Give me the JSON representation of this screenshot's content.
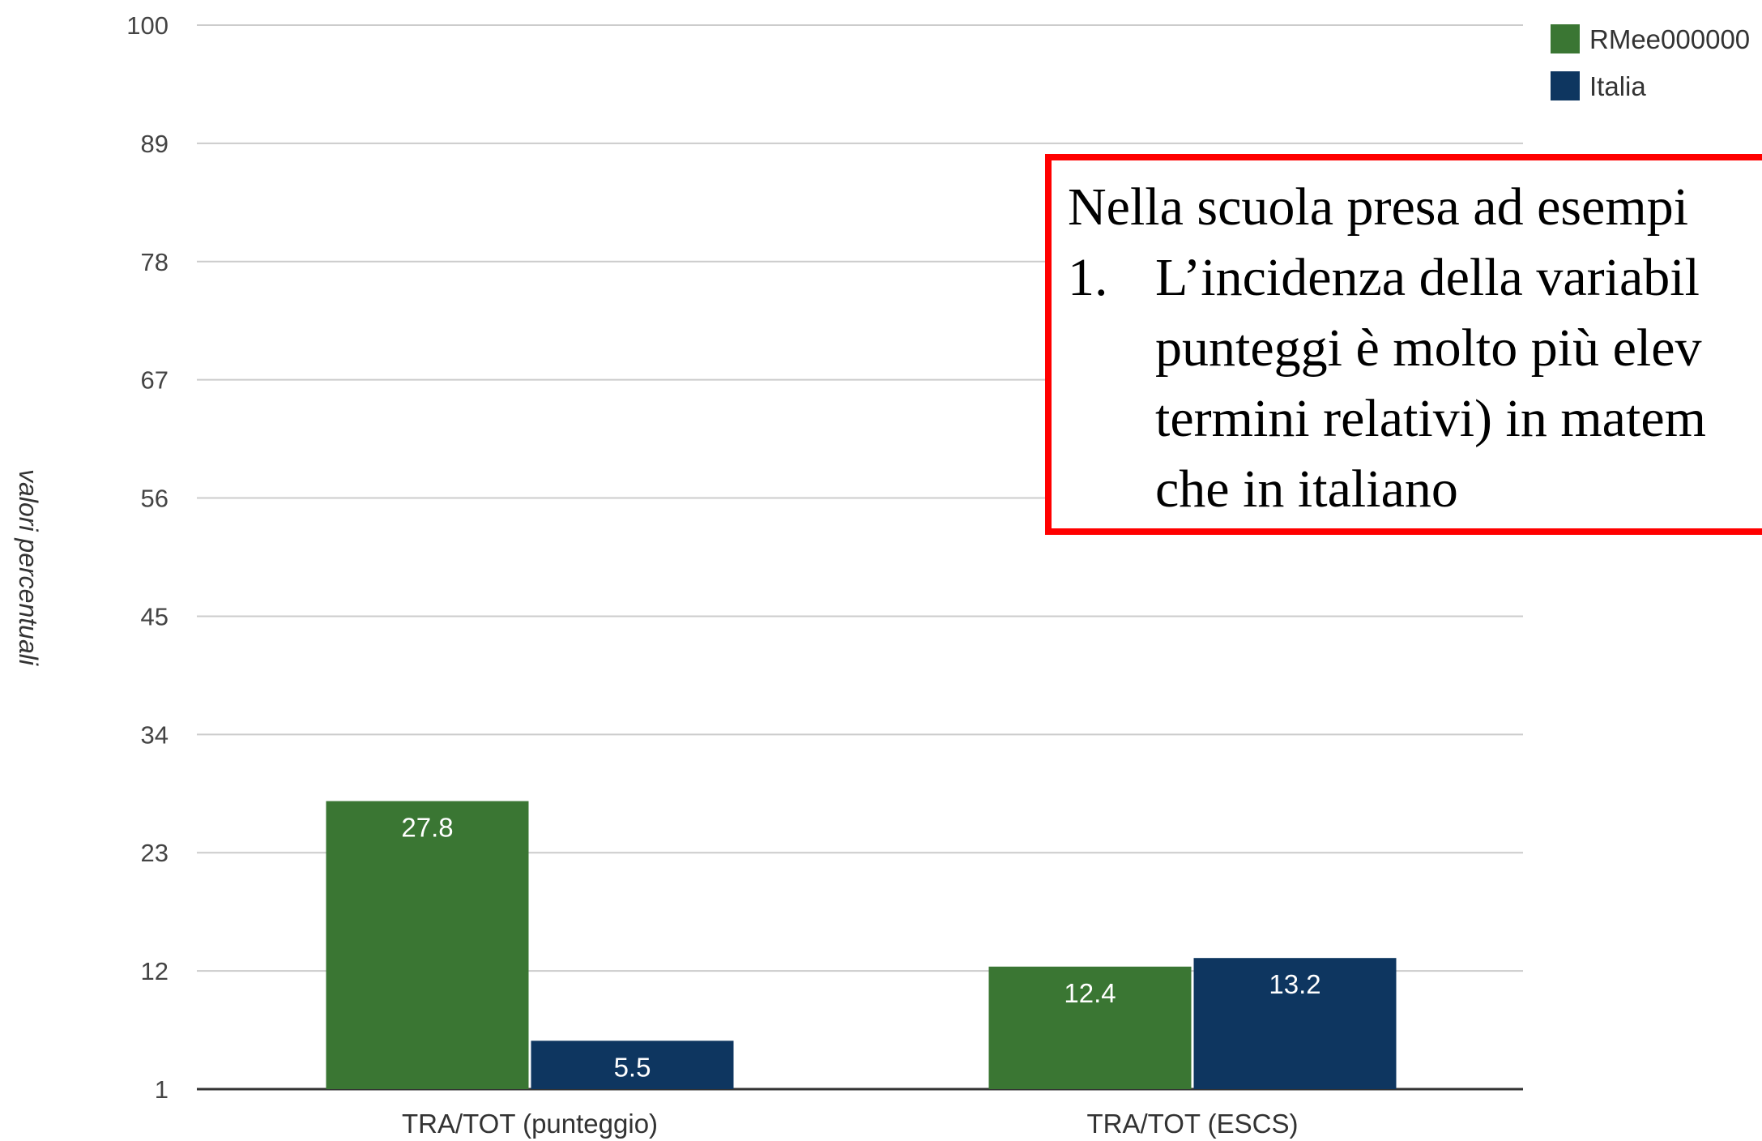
{
  "chart_data": {
    "type": "bar",
    "title": "",
    "xlabel": "",
    "ylabel": "valori percentuali",
    "ylim": [
      1,
      100
    ],
    "yticks": [
      1,
      12,
      23,
      34,
      45,
      56,
      67,
      78,
      89,
      100
    ],
    "categories": [
      "TRA/TOT (punteggio)",
      "TRA/TOT (ESCS)"
    ],
    "series": [
      {
        "name": "RMee000000",
        "color": "#3a7633",
        "values": [
          27.8,
          12.4
        ]
      },
      {
        "name": "Italia",
        "color": "#0e3660",
        "values": [
          5.5,
          13.2
        ]
      }
    ],
    "grid": true,
    "legend": "top-right"
  },
  "annotation": {
    "border_color": "#ff0000",
    "intro": "Nella scuola presa ad esempi",
    "item_number": "1.",
    "item_lines": [
      "L’incidenza della variabil",
      "punteggi è molto più elev",
      "termini relativi) in matem",
      "che in italiano"
    ]
  }
}
